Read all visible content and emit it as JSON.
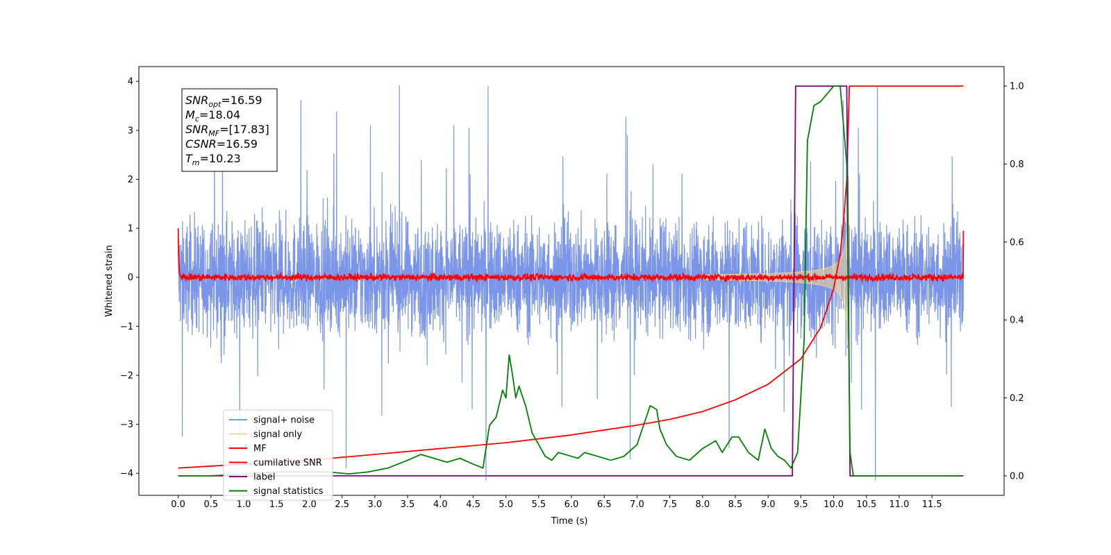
{
  "chart_data": {
    "type": "line",
    "xlabel": "Time (s)",
    "ylabel": "Whitened strain",
    "xlim": [
      -0.6,
      12.6
    ],
    "ylim": [
      -4.45,
      4.3
    ],
    "y2lim": [
      -0.05,
      1.05
    ],
    "x_ticks": [
      0.0,
      0.5,
      1.0,
      1.5,
      2.0,
      2.5,
      3.0,
      3.5,
      4.0,
      4.5,
      5.0,
      5.5,
      6.0,
      6.5,
      7.0,
      7.5,
      8.0,
      8.5,
      9.0,
      9.5,
      10.0,
      10.5,
      11.0,
      11.5
    ],
    "x_tick_labels": [
      "0.0",
      "0.5",
      "1.0",
      "1.5",
      "2.0",
      "2.5",
      "3.0",
      "3.5",
      "4.0",
      "4.5",
      "5.0",
      "5.5",
      "6.0",
      "6.5",
      "7.0",
      "7.5",
      "8.0",
      "8.5",
      "9.0",
      "9.5",
      "10.0",
      "10.5",
      "11.0",
      "11.5"
    ],
    "y_ticks": [
      4,
      3,
      2,
      1,
      0,
      -1,
      -2,
      -3,
      -4
    ],
    "y_tick_labels": [
      "4",
      "3",
      "2",
      "1",
      "0",
      "−1",
      "−2",
      "−3",
      "−4"
    ],
    "y2_ticks": [
      1.0,
      0.8,
      0.6,
      0.4,
      0.2,
      0.0
    ],
    "y2_tick_labels": [
      "1.0",
      "0.8",
      "0.6",
      "0.4",
      "0.2",
      "0.0"
    ],
    "annotation": [
      {
        "base": "SNR",
        "sub": "opt",
        "value": "=16.59"
      },
      {
        "base": "M",
        "sub": "c",
        "value": "=18.04"
      },
      {
        "base": "SNR",
        "sub": "MF",
        "value": "=[17.83]"
      },
      {
        "base": "CSNR",
        "sub": "",
        "value": "=16.59"
      },
      {
        "base": "T",
        "sub": "m",
        "value": "=10.23"
      }
    ],
    "legend_position": "lower-left",
    "series": [
      {
        "name": "signal+ noise",
        "color": "#7b96e8",
        "axis": "left",
        "x_range": [
          0.0,
          11.98
        ],
        "rms": 0.9,
        "max": 3.92,
        "min": -4.15
      },
      {
        "name": "signal only",
        "color": "#f5d78e",
        "axis": "left",
        "chirp_start": 8.0,
        "merger": 10.23,
        "peak_amplitude": 3.0
      },
      {
        "name": "MF",
        "color": "#ff0000",
        "axis": "left",
        "x_range": [
          0.0,
          11.98
        ],
        "baseline": 0.0,
        "start_value": 1.0,
        "end_value": 0.95
      },
      {
        "name": "cumilative SNR",
        "color": "#ff0000",
        "axis": "right",
        "x": [
          0.0,
          1.0,
          2.0,
          3.0,
          4.0,
          5.0,
          6.0,
          7.0,
          7.5,
          8.0,
          8.5,
          9.0,
          9.5,
          9.8,
          10.0,
          10.1,
          10.15,
          10.2,
          10.24,
          10.3,
          11.0,
          11.98
        ],
        "values": [
          0.02,
          0.03,
          0.04,
          0.055,
          0.07,
          0.085,
          0.105,
          0.13,
          0.145,
          0.165,
          0.195,
          0.235,
          0.3,
          0.38,
          0.48,
          0.57,
          0.65,
          0.76,
          1.0,
          1.0,
          1.0,
          1.0
        ]
      },
      {
        "name": "label",
        "color": "#800080",
        "axis": "right",
        "x": [
          0.0,
          9.37,
          9.42,
          10.2,
          10.25,
          11.98
        ],
        "values": [
          0.0,
          0.0,
          1.0,
          1.0,
          0.0,
          0.0
        ]
      },
      {
        "name": "signal statistics",
        "color": "#008000",
        "axis": "right",
        "x": [
          0.0,
          0.5,
          1.0,
          1.5,
          2.0,
          2.3,
          2.6,
          2.9,
          3.2,
          3.5,
          3.7,
          3.9,
          4.1,
          4.3,
          4.5,
          4.65,
          4.75,
          4.85,
          4.95,
          5.0,
          5.05,
          5.1,
          5.15,
          5.2,
          5.3,
          5.4,
          5.5,
          5.6,
          5.7,
          5.8,
          6.0,
          6.1,
          6.2,
          6.4,
          6.6,
          6.8,
          7.0,
          7.1,
          7.2,
          7.3,
          7.35,
          7.45,
          7.6,
          7.8,
          8.0,
          8.2,
          8.3,
          8.45,
          8.55,
          8.7,
          8.85,
          8.95,
          9.05,
          9.15,
          9.25,
          9.35,
          9.45,
          9.55,
          9.6,
          9.7,
          9.8,
          9.9,
          10.0,
          10.1,
          10.2,
          10.25,
          10.3,
          11.0,
          11.95
        ],
        "values": [
          0.0,
          0.0,
          0.005,
          0.01,
          0.01,
          0.01,
          0.005,
          0.01,
          0.02,
          0.04,
          0.055,
          0.045,
          0.035,
          0.045,
          0.03,
          0.02,
          0.13,
          0.15,
          0.22,
          0.2,
          0.31,
          0.26,
          0.2,
          0.23,
          0.18,
          0.11,
          0.08,
          0.05,
          0.04,
          0.06,
          0.05,
          0.045,
          0.06,
          0.05,
          0.04,
          0.05,
          0.08,
          0.13,
          0.18,
          0.17,
          0.12,
          0.08,
          0.05,
          0.04,
          0.07,
          0.09,
          0.06,
          0.1,
          0.1,
          0.06,
          0.04,
          0.12,
          0.07,
          0.05,
          0.04,
          0.02,
          0.06,
          0.35,
          0.86,
          0.95,
          0.96,
          0.98,
          1.0,
          1.0,
          0.8,
          0.06,
          0.0,
          0.0,
          0.0
        ]
      }
    ]
  }
}
